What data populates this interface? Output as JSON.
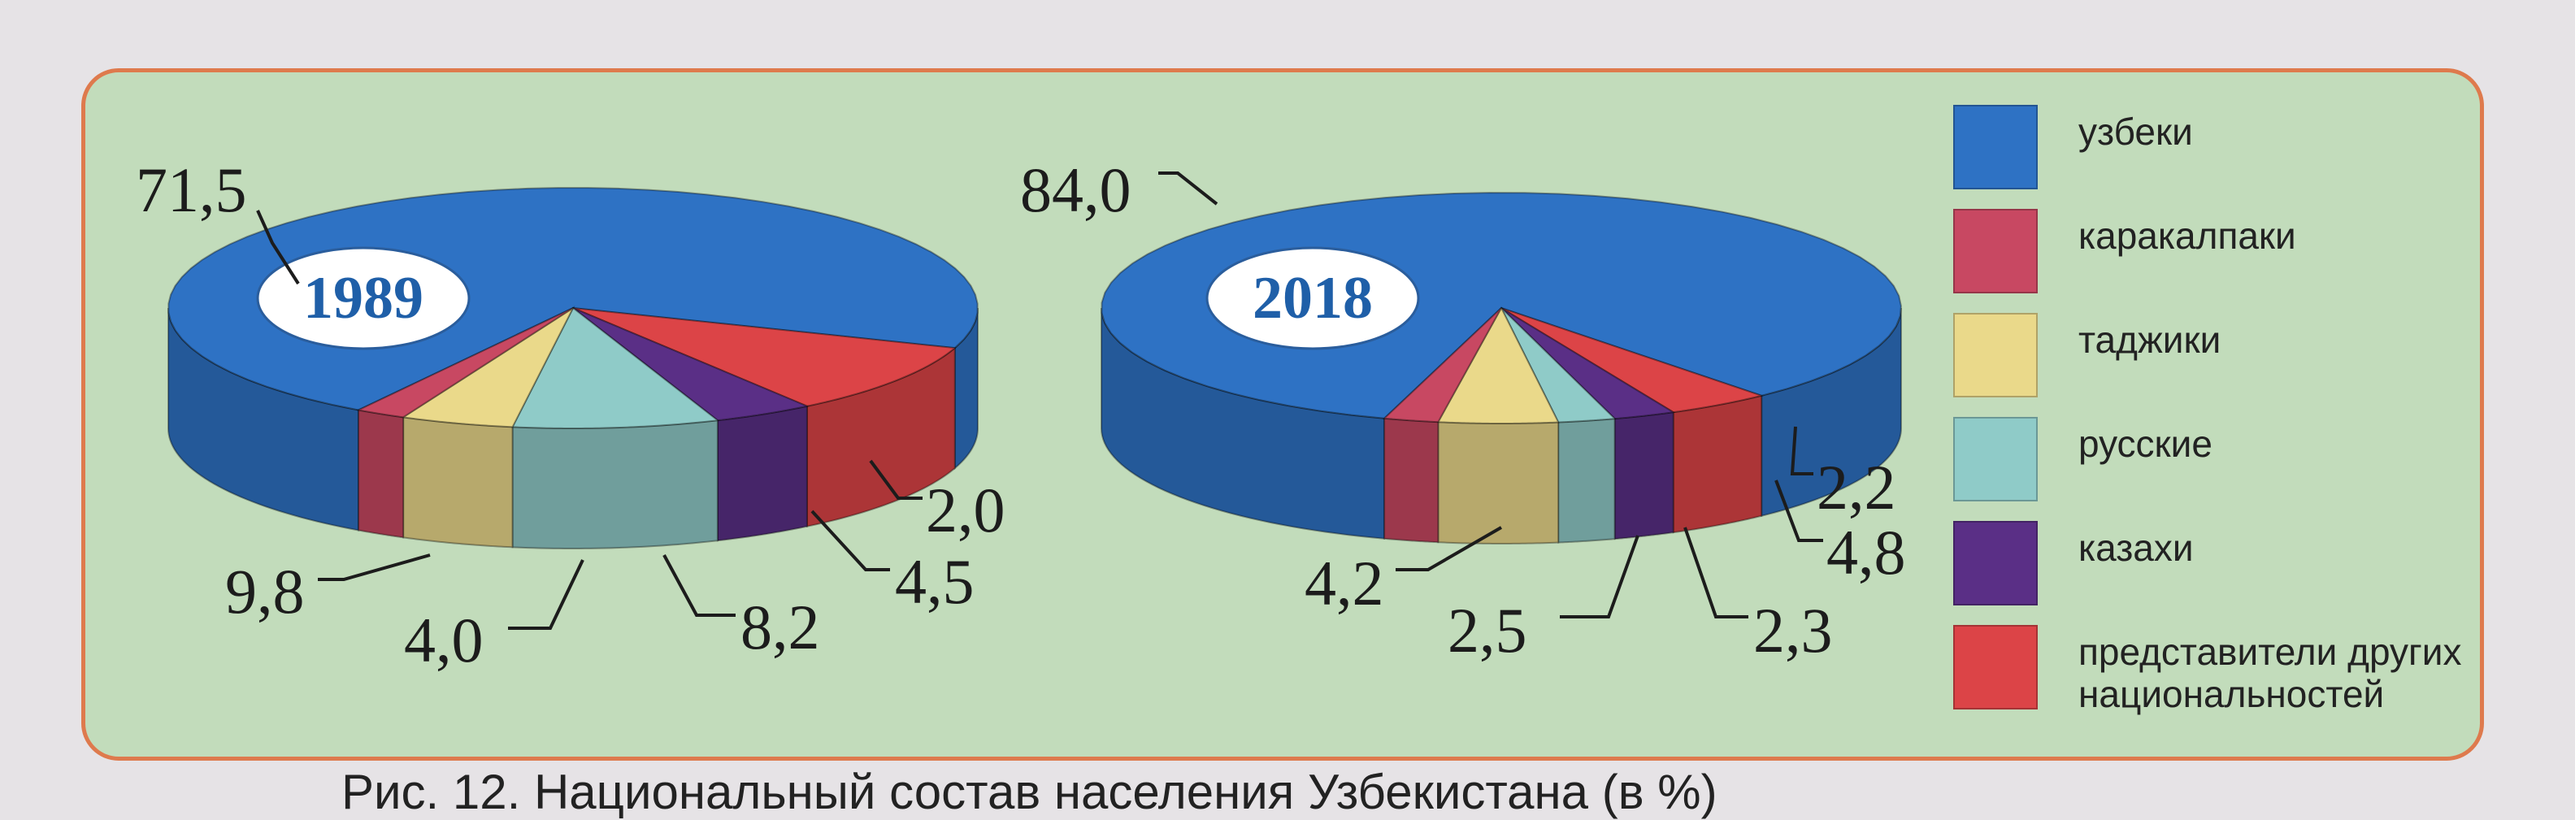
{
  "chart_data": [
    {
      "type": "pie",
      "title": "1989",
      "categories": [
        "узбеки",
        "представители других национальностей",
        "казахи",
        "русские",
        "таджики",
        "каракалпаки"
      ],
      "values": [
        71.5,
        9.8,
        4.0,
        8.2,
        4.5,
        2.0
      ],
      "value_labels": [
        "71,5",
        "9,8",
        "4,0",
        "8,2",
        "4,5",
        "2,0"
      ]
    },
    {
      "type": "pie",
      "title": "2018",
      "categories": [
        "узбеки",
        "представители других национальностей",
        "казахи",
        "русские",
        "таджики",
        "каракалпаки"
      ],
      "values": [
        84.0,
        4.2,
        2.5,
        2.3,
        4.8,
        2.2
      ],
      "value_labels": [
        "84,0",
        "4,2",
        "2,5",
        "2,3",
        "4,8",
        "2,2"
      ]
    }
  ],
  "legend": [
    {
      "label": "узбеки",
      "color": "#2e72c4"
    },
    {
      "label": "каракалпаки",
      "color": "#c84862"
    },
    {
      "label": "таджики",
      "color": "#ead98a"
    },
    {
      "label": "русские",
      "color": "#8fcbc8"
    },
    {
      "label": "казахи",
      "color": "#5a2f86"
    },
    {
      "label": "представители других национальностей",
      "color": "#dc4447"
    }
  ],
  "caption": "Рис. 12. Национальный состав населения Узбекистана (в %)"
}
